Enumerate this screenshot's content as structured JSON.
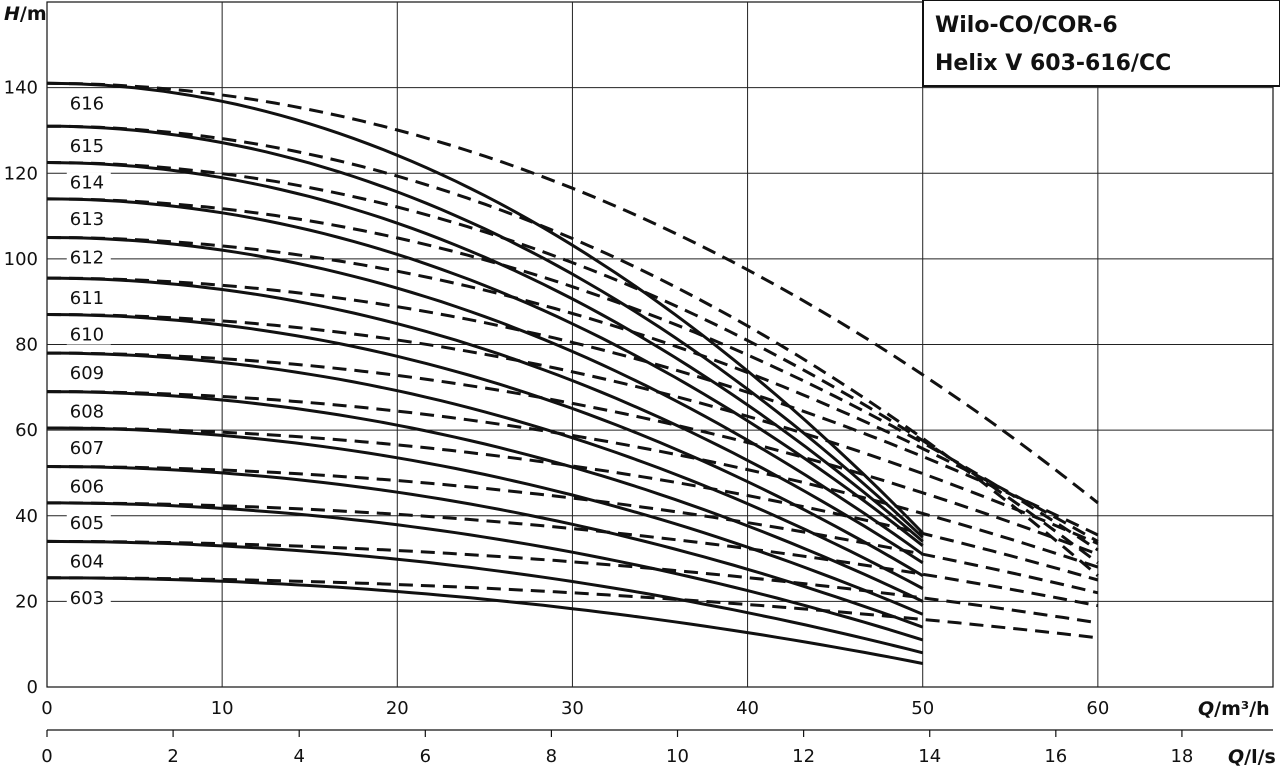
{
  "chart_data": {
    "type": "line",
    "title": [
      "Wilo-CO/COR-6",
      "Helix V 603-616/CC"
    ],
    "ylabel": {
      "italic": "H",
      "rest": "/m"
    },
    "xlabel": {
      "italic": "Q",
      "rest": "/m³/h"
    },
    "x2label": {
      "italic": "Q",
      "rest": "/l/s"
    },
    "xlim": [
      0,
      70
    ],
    "ylim": [
      0,
      160
    ],
    "x_ticks": [
      0,
      10,
      20,
      30,
      40,
      50,
      60
    ],
    "y_ticks": [
      0,
      20,
      40,
      60,
      80,
      100,
      120,
      140
    ],
    "x2_ticks": [
      0,
      2,
      4,
      6,
      8,
      10,
      12,
      14,
      16,
      18
    ],
    "x2_scale_m3h_per_ls": 3.6,
    "grid": true,
    "series": [
      {
        "name": "603",
        "H0": 25.5,
        "solid_end": [
          50,
          5.5
        ],
        "dashed_end": [
          60,
          11.5
        ]
      },
      {
        "name": "604",
        "H0": 34.0,
        "solid_end": [
          50,
          8.0
        ],
        "dashed_end": [
          60,
          15.0
        ]
      },
      {
        "name": "605",
        "H0": 43.0,
        "solid_end": [
          50,
          11.0
        ],
        "dashed_end": [
          60,
          19.0
        ]
      },
      {
        "name": "606",
        "H0": 51.5,
        "solid_end": [
          50,
          14.0
        ],
        "dashed_end": [
          60,
          22.0
        ]
      },
      {
        "name": "607",
        "H0": 60.5,
        "solid_end": [
          50,
          17.0
        ],
        "dashed_end": [
          60,
          25.0
        ]
      },
      {
        "name": "608",
        "H0": 69.0,
        "solid_end": [
          50,
          20.0
        ],
        "dashed_end": [
          60,
          28.0
        ]
      },
      {
        "name": "609",
        "H0": 78.0,
        "solid_end": [
          50,
          23.0
        ],
        "dashed_end": [
          60,
          31.0
        ]
      },
      {
        "name": "610",
        "H0": 87.0,
        "solid_end": [
          50,
          26.0
        ],
        "dashed_end": [
          60,
          33.5
        ]
      },
      {
        "name": "611",
        "H0": 95.5,
        "solid_end": [
          50,
          29.0
        ],
        "dashed_end": [
          60,
          35.5
        ]
      },
      {
        "name": "612",
        "H0": 105.0,
        "solid_end": [
          50,
          31.0
        ],
        "dashed_end": [
          60,
          34.0
        ]
      },
      {
        "name": "613",
        "H0": 114.0,
        "solid_end": [
          50,
          33.0
        ],
        "dashed_end": [
          60,
          32.0
        ]
      },
      {
        "name": "614",
        "H0": 122.5,
        "solid_end": [
          50,
          34.0
        ],
        "dashed_end": [
          60,
          29.0
        ]
      },
      {
        "name": "615",
        "H0": 131.0,
        "solid_end": [
          50,
          35.0
        ],
        "dashed_end": [
          60,
          26.0
        ]
      },
      {
        "name": "616",
        "H0": 141.0,
        "solid_end": [
          50,
          36.0
        ],
        "dashed_end": [
          60,
          43.0
        ]
      }
    ]
  }
}
